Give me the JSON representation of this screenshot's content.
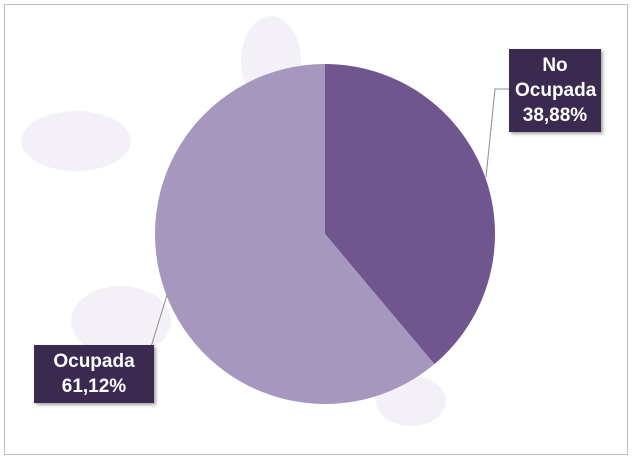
{
  "chart_data": {
    "type": "pie",
    "categories": [
      "No Ocupada",
      "Ocupada"
    ],
    "values": [
      38.88,
      61.12
    ],
    "value_labels": [
      "38,88%",
      "61,12%"
    ],
    "colors": [
      "#6f568f",
      "#a697bf"
    ]
  }
}
